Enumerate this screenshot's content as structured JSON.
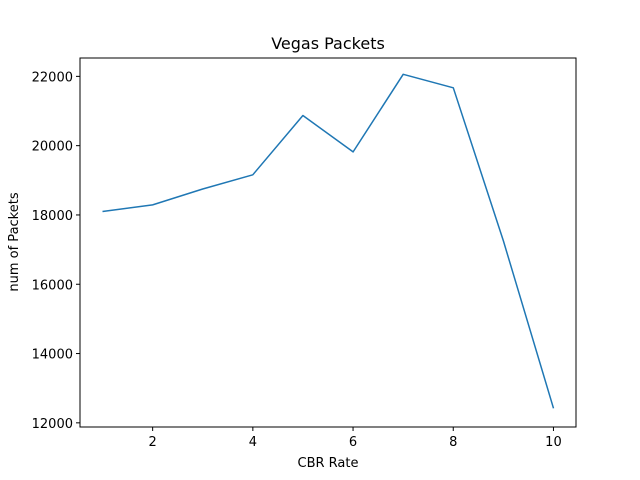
{
  "chart_data": {
    "type": "line",
    "title": "Vegas Packets",
    "xlabel": "CBR Rate",
    "ylabel": "num of Packets",
    "xlim": [
      0.55,
      10.45
    ],
    "ylim": [
      11880,
      22530
    ],
    "x_ticks": [
      2,
      4,
      6,
      8,
      10
    ],
    "y_ticks": [
      12000,
      14000,
      16000,
      18000,
      20000,
      22000
    ],
    "x_tick_labels": [
      "2",
      "4",
      "6",
      "8",
      "10"
    ],
    "y_tick_labels": [
      "12000",
      "14000",
      "16000",
      "18000",
      "20000",
      "22000"
    ],
    "grid": false,
    "series": [
      {
        "color": "#1f77b4",
        "x": [
          1,
          2,
          3,
          4,
          5,
          6,
          7,
          8,
          9,
          10
        ],
        "y": [
          18100,
          18290,
          18750,
          19160,
          20870,
          19820,
          22060,
          21670,
          17250,
          12420
        ]
      }
    ]
  }
}
